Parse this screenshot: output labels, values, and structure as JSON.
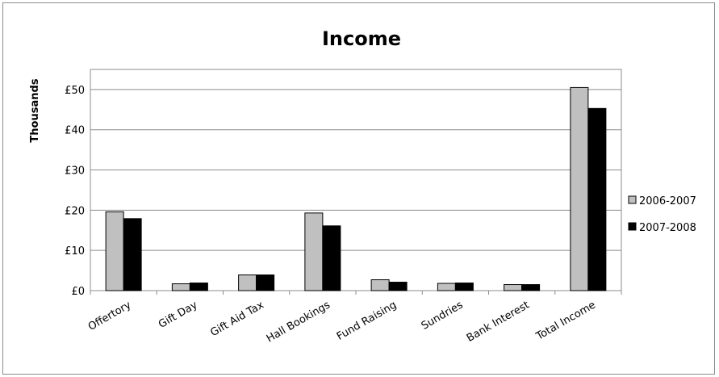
{
  "chart_data": {
    "type": "bar",
    "title": "Income",
    "ylabel": "Thousands",
    "xlabel": "",
    "categories": [
      "Offertory",
      "Gift Day",
      "Gift Aid Tax",
      "Hall Bookings",
      "Fund Raising",
      "Sundries",
      "Bank Interest",
      "Total Income"
    ],
    "series": [
      {
        "name": "2006-2007",
        "color": "#c0c0c0",
        "values": [
          19.6,
          1.7,
          3.9,
          19.3,
          2.7,
          1.8,
          1.5,
          50.5
        ]
      },
      {
        "name": "2007-2008",
        "color": "#000000",
        "values": [
          17.9,
          1.9,
          3.9,
          16.1,
          2.1,
          1.9,
          1.5,
          45.3
        ]
      }
    ],
    "ylim": [
      0,
      55
    ],
    "yticks": [
      0,
      10,
      20,
      30,
      40,
      50
    ],
    "ytick_labels": [
      "£0",
      "£10",
      "£20",
      "£30",
      "£40",
      "£50"
    ],
    "grid": true,
    "legend_position": "right"
  }
}
